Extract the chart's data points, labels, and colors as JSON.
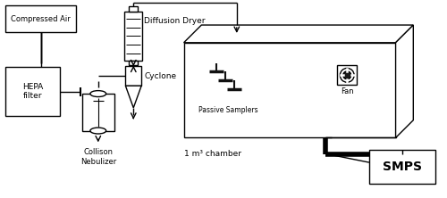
{
  "background_color": "#ffffff",
  "line_color": "#000000",
  "lw": 1.0,
  "lw_thick": 4.0,
  "fig_width": 5.0,
  "fig_height": 2.22,
  "dpi": 100,
  "labels": {
    "compressed_air": "Compressed Air",
    "hepa": "HEPA\nfilter",
    "diffusion_dryer": "Diffusion Dryer",
    "cyclone": "Cyclone",
    "collison": "Collison\nNebulizer",
    "passive_samplers": "Passive Samplers",
    "chamber": "1 m³ chamber",
    "fan": "Fan",
    "smps": "SMPS"
  }
}
